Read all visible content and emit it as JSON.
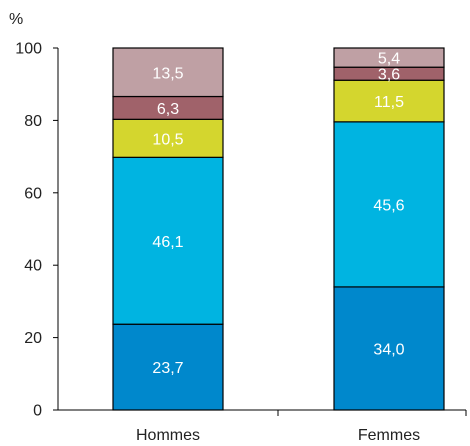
{
  "chart_data": {
    "type": "bar",
    "stacked": true,
    "unit_label": "%",
    "categories": [
      "Hommes",
      "Femmes"
    ],
    "ylim": [
      0,
      100
    ],
    "yticks": [
      0,
      20,
      40,
      60,
      80,
      100
    ],
    "grid": false,
    "series": [
      {
        "color": "#0088cc",
        "values": [
          23.7,
          34.0
        ],
        "labels": [
          "23,7",
          "34,0"
        ]
      },
      {
        "color": "#00b4e1",
        "values": [
          46.1,
          45.6
        ],
        "labels": [
          "46,1",
          "45,6"
        ]
      },
      {
        "color": "#d4d62e",
        "values": [
          10.5,
          11.5
        ],
        "labels": [
          "10,5",
          "11,5"
        ]
      },
      {
        "color": "#a0626a",
        "values": [
          6.3,
          3.6
        ],
        "labels": [
          "6,3",
          "3,6"
        ]
      },
      {
        "color": "#bfa0a4",
        "values": [
          13.5,
          5.4
        ],
        "labels": [
          "13,5",
          "5,4"
        ]
      }
    ]
  }
}
